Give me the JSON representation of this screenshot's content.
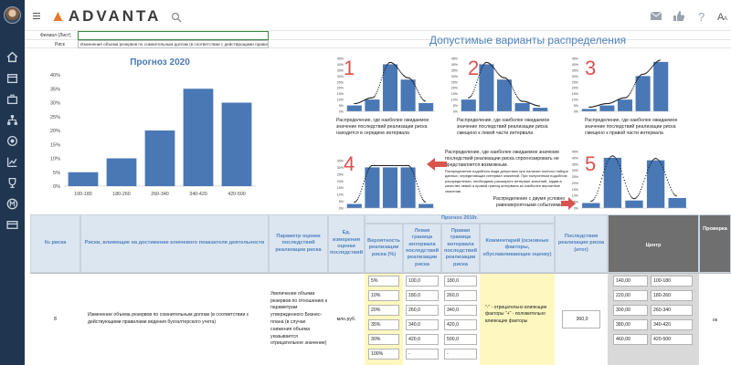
{
  "app": {
    "logo": "ADVANTA",
    "colors": {
      "sidebar": "#1f3550",
      "accent": "#4f82bd",
      "bar": "#4a78b5",
      "highlight": "#d9534f",
      "yellow": "#fef8c0"
    }
  },
  "sidebar": {
    "icons": [
      "home-icon",
      "calendar-icon",
      "briefcase-icon",
      "org-chart-icon",
      "target-icon",
      "chart-icon",
      "trophy-icon",
      "currency-icon",
      "card-icon"
    ]
  },
  "topbar": {
    "icons": [
      "mail-icon",
      "thumbs-up-icon",
      "help-icon",
      "font-size-icon"
    ]
  },
  "sheet": {
    "branch_label": "Филиал (Лист)",
    "risk_label": "Риск",
    "risk_value": "Изменение объема резервов по сомнительным долгам (в соответствии с действующими правилами ведения бухгалтерского учета)"
  },
  "forecast_chart": {
    "title": "Прогноз 2020"
  },
  "chart_data": [
    {
      "type": "bar",
      "title": "Прогноз 2020",
      "categories": [
        "100-180",
        "180-260",
        "260-340",
        "340-420",
        "420-500"
      ],
      "values": [
        5,
        10,
        20,
        35,
        30
      ],
      "ylim": [
        0,
        40
      ],
      "yticks": [
        "0%",
        "5%",
        "10%",
        "15%",
        "20%",
        "25%",
        "30%",
        "35%",
        "40%"
      ],
      "grid": false
    },
    {
      "type": "bar",
      "label": "1",
      "values": [
        5,
        10,
        40,
        27,
        7
      ],
      "ylim": [
        0,
        45
      ],
      "yticks": [
        "0%",
        "5%",
        "10%",
        "15%",
        "20%",
        "25%",
        "30%",
        "35%",
        "40%",
        "45%"
      ]
    },
    {
      "type": "bar",
      "label": "2",
      "values": [
        10,
        40,
        27,
        7,
        3
      ],
      "ylim": [
        0,
        45
      ],
      "yticks": [
        "0%",
        "5%",
        "10%",
        "15%",
        "20%",
        "25%",
        "30%",
        "35%",
        "40%",
        "45%"
      ]
    },
    {
      "type": "bar",
      "label": "3",
      "values": [
        2,
        5,
        10,
        30,
        42
      ],
      "ylim": [
        0,
        45
      ],
      "yticks": [
        "0%",
        "5%",
        "10%",
        "15%",
        "20%",
        "25%",
        "30%",
        "35%",
        "40%",
        "45%"
      ]
    },
    {
      "type": "bar",
      "label": "4",
      "values": [
        3,
        30,
        30,
        30,
        3
      ],
      "ylim": [
        0,
        35
      ],
      "yticks": [
        "0%",
        "5%",
        "10%",
        "15%",
        "20%",
        "25%",
        "30%",
        "35%"
      ]
    },
    {
      "type": "bar",
      "label": "5",
      "values": [
        4,
        40,
        6,
        38,
        8
      ],
      "ylim": [
        0,
        45
      ],
      "yticks": [
        "0%",
        "5%",
        "10%",
        "15%",
        "20%",
        "25%",
        "30%",
        "35%",
        "40%",
        "45%"
      ]
    }
  ],
  "distributions": {
    "title": "Допустимые варианты распределения",
    "desc_1": "Распределение, где наиболее ожидаемое значение последствий реализации риска находится в середине интервала",
    "desc_2": "Распределение, где наиболее ожидаемое значение последствий реализации риска смещено к левой части интервала",
    "desc_3": "Распределение, где наиболее ожидаемое значение последствий реализации риска смещено к правой части интервала",
    "desc_4": "Распределение, где наиболее ожидаемое значение последствий реализации риска спрогнозировать не представляется возможным.",
    "desc_4_small": "Распределение подобного вида допустимо при наличии полного набора данных, определяющих интервал значений. При полученном подобном распределении, необходимо расширить интервал значений, задав в качестве левой и правой границ интервала их наиболее вероятные значения",
    "desc_5": "Распределение с двумя условно равновероятными событиями"
  },
  "table": {
    "forecast_header": "Прогноз 2019г.",
    "headers": {
      "risk_no": "№ риска",
      "risks": "Риски, влияющие на достижение ключевого показателя деятельности",
      "param": "Параметр оценки последствий реализации риска",
      "unit": "Ед. измерения оценки последствий",
      "prob": "Вероятность реализации риска (%)",
      "left": "Левая граница интервала последствий реализации риска",
      "right": "Правая граница интервала последствий реализации риска",
      "comment": "Комментарий (основные факторы, обуславливающие оценку)",
      "total": "Последствия реализации риска (итог)",
      "center": "Центр",
      "check": "Проверка"
    },
    "row": {
      "number": "8",
      "risk": "Изменение объема резервов по сомнительным долгам (в соответствии с действующими правилами ведения бухгалтерского учета)",
      "param": "Увеличение объема резервов по отношению к параметрам утвержденного Бизнес-плана (в случае снижения объема указывается отрицательное значение)",
      "unit": "млн.руб.",
      "probs": [
        "5%",
        "10%",
        "20%",
        "35%",
        "30%",
        "100%"
      ],
      "lefts": [
        "100,0",
        "180,0",
        "260,0",
        "340,0",
        "420,0",
        "-"
      ],
      "rights": [
        "180,0",
        "260,0",
        "340,0",
        "420,0",
        "500,0",
        "-"
      ],
      "comment": "\"-\" - отрицательно влияющие факторы \"+\" - положительно влияющие факторы",
      "total": "360,0",
      "centers": [
        "140,00",
        "220,00",
        "300,00",
        "380,00",
        "460,00"
      ],
      "intervals": [
        "100-180",
        "180-260",
        "260-340",
        "340-420",
        "420-500"
      ],
      "check": "ок"
    }
  }
}
